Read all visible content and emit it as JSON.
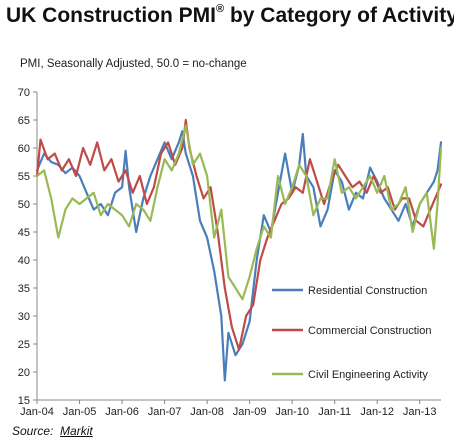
{
  "page": {
    "title": "UK Construction PMI",
    "title_mark": "®",
    "title_suffix": " by Category of Activity",
    "subtitle": "PMI, Seasonally Adjusted, 50.0 = no-change",
    "source_label": "Source:",
    "source_name": "Markit"
  },
  "chart_data": {
    "type": "line",
    "title": "UK Construction PMI® by Category of Activity",
    "subtitle": "PMI, Seasonally Adjusted, 50.0 = no-change",
    "xlabel": "",
    "ylabel": "",
    "ylim": [
      15,
      70
    ],
    "yticks": [
      15,
      20,
      25,
      30,
      35,
      40,
      45,
      50,
      55,
      60,
      65,
      70
    ],
    "x_ticks": [
      "Jan-04",
      "Jan-05",
      "Jan-06",
      "Jan-07",
      "Jan-08",
      "Jan-09",
      "Jan-10",
      "Jan-11",
      "Jan-12",
      "Jan-13"
    ],
    "x_start": "2004-01",
    "x_end": "2013-07",
    "grid": false,
    "legend_position": "inside-right",
    "series": [
      {
        "name": "Residential Construction",
        "color": "#4a7ebb",
        "points": [
          [
            "2004-01",
            56.0
          ],
          [
            "2004-03",
            59.0
          ],
          [
            "2004-05",
            57.5
          ],
          [
            "2004-07",
            57.0
          ],
          [
            "2004-09",
            55.5
          ],
          [
            "2004-11",
            56.5
          ],
          [
            "2005-01",
            55.0
          ],
          [
            "2005-03",
            52.0
          ],
          [
            "2005-05",
            49.0
          ],
          [
            "2005-07",
            50.0
          ],
          [
            "2005-09",
            48.0
          ],
          [
            "2005-11",
            52.0
          ],
          [
            "2006-01",
            53.0
          ],
          [
            "2006-02",
            59.5
          ],
          [
            "2006-03",
            53.0
          ],
          [
            "2006-05",
            45.0
          ],
          [
            "2006-07",
            51.0
          ],
          [
            "2006-09",
            55.0
          ],
          [
            "2006-11",
            58.0
          ],
          [
            "2007-01",
            61.0
          ],
          [
            "2007-03",
            58.0
          ],
          [
            "2007-05",
            61.0
          ],
          [
            "2007-06",
            63.0
          ],
          [
            "2007-07",
            59.0
          ],
          [
            "2007-09",
            55.0
          ],
          [
            "2007-11",
            47.0
          ],
          [
            "2008-01",
            44.0
          ],
          [
            "2008-03",
            38.0
          ],
          [
            "2008-05",
            30.0
          ],
          [
            "2008-06",
            18.5
          ],
          [
            "2008-07",
            27.0
          ],
          [
            "2008-09",
            23.0
          ],
          [
            "2008-11",
            25.0
          ],
          [
            "2009-01",
            29.0
          ],
          [
            "2009-03",
            40.0
          ],
          [
            "2009-05",
            48.0
          ],
          [
            "2009-07",
            45.0
          ],
          [
            "2009-09",
            52.0
          ],
          [
            "2009-11",
            59.0
          ],
          [
            "2010-01",
            52.0
          ],
          [
            "2010-03",
            57.0
          ],
          [
            "2010-04",
            62.5
          ],
          [
            "2010-05",
            55.0
          ],
          [
            "2010-07",
            53.0
          ],
          [
            "2010-09",
            46.0
          ],
          [
            "2010-11",
            49.0
          ],
          [
            "2011-01",
            56.0
          ],
          [
            "2011-03",
            54.0
          ],
          [
            "2011-05",
            49.0
          ],
          [
            "2011-07",
            52.0
          ],
          [
            "2011-09",
            51.0
          ],
          [
            "2011-11",
            56.5
          ],
          [
            "2012-01",
            54.0
          ],
          [
            "2012-03",
            51.0
          ],
          [
            "2012-05",
            49.0
          ],
          [
            "2012-07",
            47.0
          ],
          [
            "2012-09",
            50.0
          ],
          [
            "2012-11",
            46.0
          ],
          [
            "2013-01",
            50.0
          ],
          [
            "2013-03",
            52.0
          ],
          [
            "2013-05",
            54.0
          ],
          [
            "2013-06",
            56.0
          ],
          [
            "2013-07",
            61.0
          ]
        ]
      },
      {
        "name": "Commercial Construction",
        "color": "#be4b48",
        "points": [
          [
            "2004-01",
            55.0
          ],
          [
            "2004-02",
            61.5
          ],
          [
            "2004-04",
            58.0
          ],
          [
            "2004-06",
            59.0
          ],
          [
            "2004-08",
            56.0
          ],
          [
            "2004-10",
            58.0
          ],
          [
            "2004-12",
            55.0
          ],
          [
            "2005-02",
            60.0
          ],
          [
            "2005-04",
            57.0
          ],
          [
            "2005-06",
            61.0
          ],
          [
            "2005-08",
            56.0
          ],
          [
            "2005-10",
            58.0
          ],
          [
            "2005-12",
            54.0
          ],
          [
            "2006-02",
            56.0
          ],
          [
            "2006-04",
            52.0
          ],
          [
            "2006-06",
            55.0
          ],
          [
            "2006-08",
            50.0
          ],
          [
            "2006-10",
            53.0
          ],
          [
            "2006-12",
            59.0
          ],
          [
            "2007-02",
            61.0
          ],
          [
            "2007-04",
            57.0
          ],
          [
            "2007-06",
            60.0
          ],
          [
            "2007-07",
            65.0
          ],
          [
            "2007-08",
            60.0
          ],
          [
            "2007-10",
            55.0
          ],
          [
            "2007-12",
            51.0
          ],
          [
            "2008-02",
            53.0
          ],
          [
            "2008-04",
            45.0
          ],
          [
            "2008-06",
            35.0
          ],
          [
            "2008-08",
            28.0
          ],
          [
            "2008-10",
            24.0
          ],
          [
            "2008-12",
            30.0
          ],
          [
            "2009-02",
            32.0
          ],
          [
            "2009-04",
            40.0
          ],
          [
            "2009-06",
            44.0
          ],
          [
            "2009-08",
            47.0
          ],
          [
            "2009-10",
            50.0
          ],
          [
            "2009-12",
            51.0
          ],
          [
            "2010-02",
            53.0
          ],
          [
            "2010-04",
            52.0
          ],
          [
            "2010-06",
            58.0
          ],
          [
            "2010-08",
            54.0
          ],
          [
            "2010-10",
            50.0
          ],
          [
            "2010-12",
            54.0
          ],
          [
            "2011-02",
            57.0
          ],
          [
            "2011-04",
            55.0
          ],
          [
            "2011-06",
            53.0
          ],
          [
            "2011-08",
            54.0
          ],
          [
            "2011-10",
            52.0
          ],
          [
            "2011-12",
            55.0
          ],
          [
            "2012-02",
            52.0
          ],
          [
            "2012-04",
            53.0
          ],
          [
            "2012-06",
            49.0
          ],
          [
            "2012-08",
            51.0
          ],
          [
            "2012-10",
            51.0
          ],
          [
            "2012-12",
            47.0
          ],
          [
            "2013-02",
            46.0
          ],
          [
            "2013-04",
            49.0
          ],
          [
            "2013-06",
            52.0
          ],
          [
            "2013-07",
            53.5
          ]
        ]
      },
      {
        "name": "Civil Engineering Activity",
        "color": "#98b954",
        "points": [
          [
            "2004-01",
            55.0
          ],
          [
            "2004-03",
            56.0
          ],
          [
            "2004-05",
            51.0
          ],
          [
            "2004-07",
            44.0
          ],
          [
            "2004-09",
            49.0
          ],
          [
            "2004-11",
            51.0
          ],
          [
            "2005-01",
            50.0
          ],
          [
            "2005-03",
            51.0
          ],
          [
            "2005-05",
            52.0
          ],
          [
            "2005-07",
            48.0
          ],
          [
            "2005-09",
            50.0
          ],
          [
            "2005-11",
            49.0
          ],
          [
            "2006-01",
            48.0
          ],
          [
            "2006-03",
            46.0
          ],
          [
            "2006-05",
            50.0
          ],
          [
            "2006-07",
            49.0
          ],
          [
            "2006-09",
            47.0
          ],
          [
            "2006-11",
            53.0
          ],
          [
            "2007-01",
            58.0
          ],
          [
            "2007-03",
            56.0
          ],
          [
            "2007-05",
            59.0
          ],
          [
            "2007-07",
            64.0
          ],
          [
            "2007-09",
            57.0
          ],
          [
            "2007-11",
            59.0
          ],
          [
            "2008-01",
            55.0
          ],
          [
            "2008-03",
            44.0
          ],
          [
            "2008-05",
            49.0
          ],
          [
            "2008-07",
            37.0
          ],
          [
            "2008-09",
            35.0
          ],
          [
            "2008-11",
            33.0
          ],
          [
            "2009-01",
            37.0
          ],
          [
            "2009-03",
            42.0
          ],
          [
            "2009-05",
            46.0
          ],
          [
            "2009-07",
            44.0
          ],
          [
            "2009-09",
            55.0
          ],
          [
            "2009-11",
            50.0
          ],
          [
            "2010-01",
            53.0
          ],
          [
            "2010-03",
            57.0
          ],
          [
            "2010-05",
            55.0
          ],
          [
            "2010-07",
            48.0
          ],
          [
            "2010-09",
            51.0
          ],
          [
            "2010-11",
            51.0
          ],
          [
            "2011-01",
            58.0
          ],
          [
            "2011-03",
            52.0
          ],
          [
            "2011-05",
            53.0
          ],
          [
            "2011-07",
            51.0
          ],
          [
            "2011-09",
            53.0
          ],
          [
            "2011-11",
            55.0
          ],
          [
            "2012-01",
            52.0
          ],
          [
            "2012-03",
            55.0
          ],
          [
            "2012-05",
            49.0
          ],
          [
            "2012-07",
            50.0
          ],
          [
            "2012-09",
            53.0
          ],
          [
            "2012-11",
            45.0
          ],
          [
            "2013-01",
            50.0
          ],
          [
            "2013-03",
            52.0
          ],
          [
            "2013-05",
            42.0
          ],
          [
            "2013-06",
            50.0
          ],
          [
            "2013-07",
            60.0
          ]
        ]
      }
    ]
  }
}
